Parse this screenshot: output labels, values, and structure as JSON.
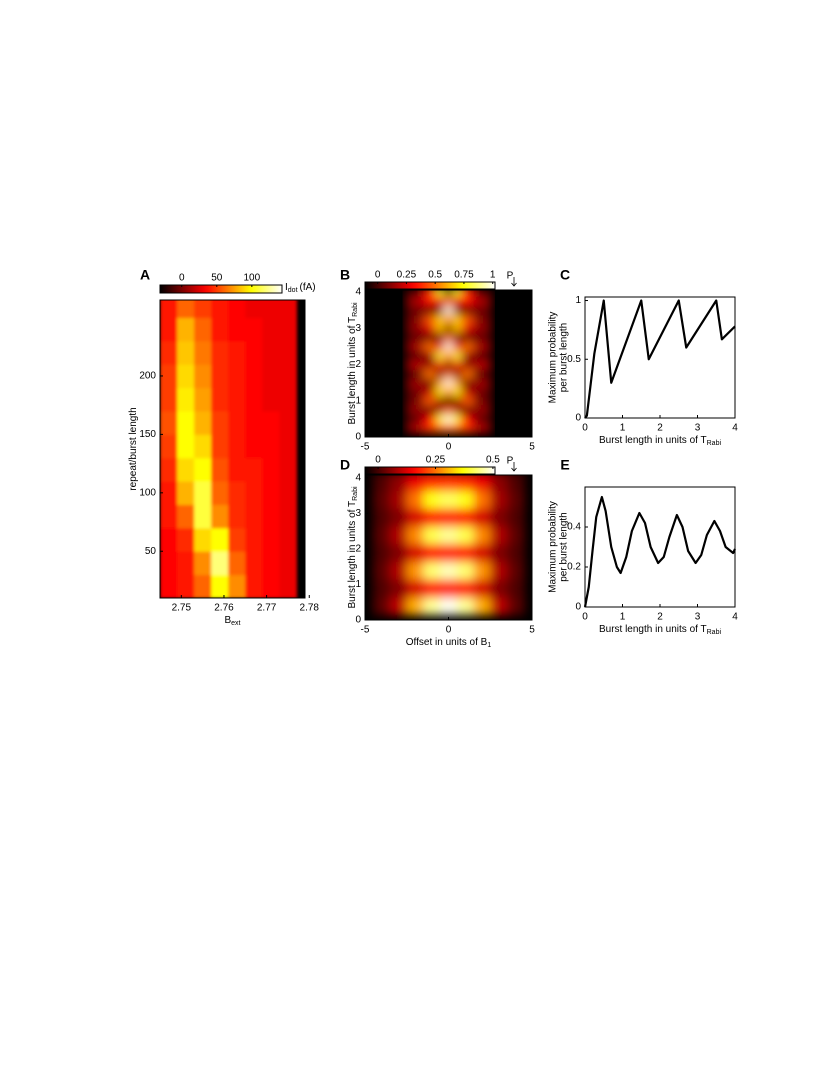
{
  "chart_data": [
    {
      "type": "heatmap",
      "panel": "A",
      "colormap": "hot",
      "xlabel": "B",
      "xlabel_sub": "ext",
      "ylabel": "repeat/burst length",
      "xlim": [
        2.745,
        2.779
      ],
      "ylim": [
        10,
        265
      ],
      "xticks": [
        2.75,
        2.76,
        2.77,
        2.78
      ],
      "yticks": [
        50,
        100,
        150,
        200
      ],
      "colorbar": {
        "lim": [
          -31,
          143
        ],
        "ticks": [
          0,
          50,
          100
        ],
        "label": "I",
        "label_sub": "dot",
        "label_unit": "(fA)"
      },
      "x": [
        2.747,
        2.751,
        2.755,
        2.759,
        2.763,
        2.767,
        2.771,
        2.775
      ],
      "y": [
        20,
        40,
        60,
        80,
        100,
        120,
        140,
        160,
        180,
        200,
        220,
        240,
        260
      ],
      "z": [
        [
          35,
          40,
          60,
          100,
          70,
          40,
          35,
          30
        ],
        [
          35,
          40,
          70,
          120,
          60,
          40,
          35,
          30
        ],
        [
          35,
          45,
          90,
          100,
          50,
          40,
          35,
          30
        ],
        [
          40,
          60,
          110,
          70,
          45,
          40,
          35,
          30
        ],
        [
          40,
          80,
          110,
          60,
          45,
          40,
          35,
          30
        ],
        [
          45,
          90,
          100,
          55,
          40,
          40,
          35,
          30
        ],
        [
          50,
          100,
          90,
          50,
          40,
          35,
          35,
          30
        ],
        [
          55,
          100,
          80,
          50,
          40,
          35,
          35,
          30
        ],
        [
          50,
          95,
          75,
          45,
          40,
          35,
          30,
          30
        ],
        [
          50,
          90,
          70,
          45,
          40,
          35,
          30,
          30
        ],
        [
          45,
          85,
          65,
          45,
          40,
          35,
          30,
          30
        ],
        [
          40,
          80,
          60,
          40,
          35,
          35,
          30,
          30
        ],
        [
          40,
          60,
          50,
          40,
          35,
          30,
          30,
          30
        ]
      ]
    },
    {
      "type": "heatmap",
      "panel": "B",
      "colormap": "hot",
      "marker": "P",
      "ylabel": "Burst length in units of T",
      "ylabel_sub": "Rabi",
      "xlim": [
        -5,
        5
      ],
      "ylim": [
        0,
        4.05
      ],
      "xticks": [
        -5,
        0,
        5
      ],
      "yticks": [
        0,
        1,
        2,
        3,
        4
      ],
      "colorbar": {
        "lim": [
          -0.11,
          1.02
        ],
        "ticks": [
          0,
          0.25,
          0.5,
          0.75,
          1
        ]
      },
      "x": [
        -2,
        -1,
        -0.5,
        0,
        0.5,
        1,
        2
      ],
      "y": [
        0.25,
        0.5,
        0.75,
        1,
        1.25,
        1.5,
        1.75,
        2,
        2.25,
        2.5,
        2.75,
        3,
        3.25,
        3.5,
        3.75,
        4
      ],
      "z": [
        [
          0.19,
          0.4,
          0.47,
          0.5,
          0.47,
          0.4,
          0.19
        ],
        [
          0.03,
          0.32,
          0.77,
          1,
          0.77,
          0.32,
          0.03
        ],
        [
          0.14,
          0.02,
          0.19,
          0.5,
          0.19,
          0.02,
          0.14
        ],
        [
          0.09,
          0.46,
          0.1,
          0,
          0.1,
          0.46,
          0.09
        ],
        [
          0.07,
          0.22,
          0.72,
          0.5,
          0.72,
          0.22,
          0.07
        ],
        [
          0.16,
          0.07,
          0.58,
          1,
          0.58,
          0.07,
          0.16
        ],
        [
          0.01,
          0.5,
          0.01,
          0.5,
          0.01,
          0.5,
          0.01
        ],
        [
          0.2,
          0.13,
          0.36,
          0,
          0.36,
          0.13,
          0.2
        ],
        [
          0,
          0.15,
          0.8,
          0.5,
          0.8,
          0.15,
          0
        ],
        [
          0.18,
          0.49,
          0.28,
          1,
          0.28,
          0.49,
          0.18
        ],
        [
          0.04,
          0.06,
          0.04,
          0.5,
          0.04,
          0.06,
          0.04
        ],
        [
          0.13,
          0.26,
          0.63,
          0,
          0.63,
          0.26,
          0.13
        ],
        [
          0.11,
          0.45,
          0.68,
          0.5,
          0.68,
          0.45,
          0.11
        ],
        [
          0.05,
          0.01,
          0.06,
          1,
          0.06,
          0.01,
          0.05
        ],
        [
          0.18,
          0.34,
          0.26,
          0.5,
          0.26,
          0.34,
          0.18
        ],
        [
          0.01,
          0.38,
          0.79,
          0,
          0.79,
          0.38,
          0.01
        ]
      ]
    },
    {
      "type": "line",
      "panel": "C",
      "color": "#000000",
      "ylabel": [
        "Maximum probability",
        "per burst length"
      ],
      "xlabel": "Burst length in units of T",
      "xlabel_sub": "Rabi",
      "xlim": [
        0,
        4
      ],
      "ylim": [
        0,
        1.03
      ],
      "xticks": [
        0,
        1,
        2,
        3,
        4
      ],
      "yticks": [
        0,
        0.5,
        1
      ],
      "x": [
        0,
        0.05,
        0.25,
        0.5,
        0.7,
        1.5,
        1.7,
        2.5,
        2.7,
        3.5,
        3.65,
        4
      ],
      "values": [
        0,
        0.02,
        0.55,
        1,
        0.3,
        1,
        0.5,
        1,
        0.6,
        1,
        0.67,
        0.78
      ]
    },
    {
      "type": "heatmap",
      "panel": "D",
      "colormap": "hot",
      "marker": "P",
      "ylabel": "Burst length in units of T",
      "ylabel_sub": "Rabi",
      "xlabel": "Offset in units of B",
      "xlabel_sub": "1",
      "xlim": [
        -5,
        5
      ],
      "ylim": [
        0,
        4.08
      ],
      "xticks": [
        -5,
        0,
        5
      ],
      "yticks": [
        0,
        1,
        2,
        3,
        4
      ],
      "colorbar": {
        "lim": [
          -0.057,
          0.509
        ],
        "ticks": [
          0,
          0.25,
          0.5
        ]
      },
      "x": [
        -4,
        -3,
        -2,
        -1,
        0,
        1,
        2,
        3,
        4
      ],
      "y": [
        0.4,
        0.9,
        1.4,
        1.9,
        2.4,
        2.9,
        3.4,
        3.9
      ],
      "z": [
        [
          0.02,
          0.1,
          0.3,
          0.45,
          0.5,
          0.45,
          0.3,
          0.1,
          0.02
        ],
        [
          0.01,
          0.05,
          0.12,
          0.17,
          0.18,
          0.17,
          0.12,
          0.05,
          0.01
        ],
        [
          0.02,
          0.09,
          0.28,
          0.43,
          0.47,
          0.43,
          0.28,
          0.09,
          0.02
        ],
        [
          0.01,
          0.05,
          0.12,
          0.17,
          0.18,
          0.17,
          0.12,
          0.05,
          0.01
        ],
        [
          0.02,
          0.09,
          0.27,
          0.41,
          0.45,
          0.41,
          0.27,
          0.09,
          0.02
        ],
        [
          0.01,
          0.05,
          0.12,
          0.17,
          0.18,
          0.17,
          0.12,
          0.05,
          0.01
        ],
        [
          0.02,
          0.08,
          0.25,
          0.38,
          0.42,
          0.38,
          0.25,
          0.08,
          0.02
        ],
        [
          0.01,
          0.06,
          0.14,
          0.19,
          0.2,
          0.19,
          0.14,
          0.06,
          0.01
        ]
      ]
    },
    {
      "type": "line",
      "panel": "E",
      "color": "#000000",
      "ylabel": [
        "Maximum probability",
        "per burst length"
      ],
      "xlabel": "Burst length in units of T",
      "xlabel_sub": "Rabi",
      "xlim": [
        0,
        4
      ],
      "ylim": [
        0,
        0.6
      ],
      "xticks": [
        0,
        1,
        2,
        3,
        4
      ],
      "yticks": [
        0,
        0.2,
        0.4
      ],
      "x": [
        0,
        0.1,
        0.2,
        0.3,
        0.45,
        0.55,
        0.7,
        0.85,
        0.95,
        1.1,
        1.25,
        1.45,
        1.6,
        1.75,
        1.95,
        2.1,
        2.25,
        2.45,
        2.6,
        2.75,
        2.95,
        3.1,
        3.25,
        3.45,
        3.6,
        3.75,
        3.95,
        4
      ],
      "values": [
        0,
        0.1,
        0.28,
        0.45,
        0.55,
        0.48,
        0.3,
        0.2,
        0.17,
        0.25,
        0.38,
        0.47,
        0.42,
        0.3,
        0.22,
        0.25,
        0.35,
        0.46,
        0.4,
        0.28,
        0.22,
        0.26,
        0.36,
        0.43,
        0.38,
        0.3,
        0.27,
        0.29
      ]
    }
  ]
}
